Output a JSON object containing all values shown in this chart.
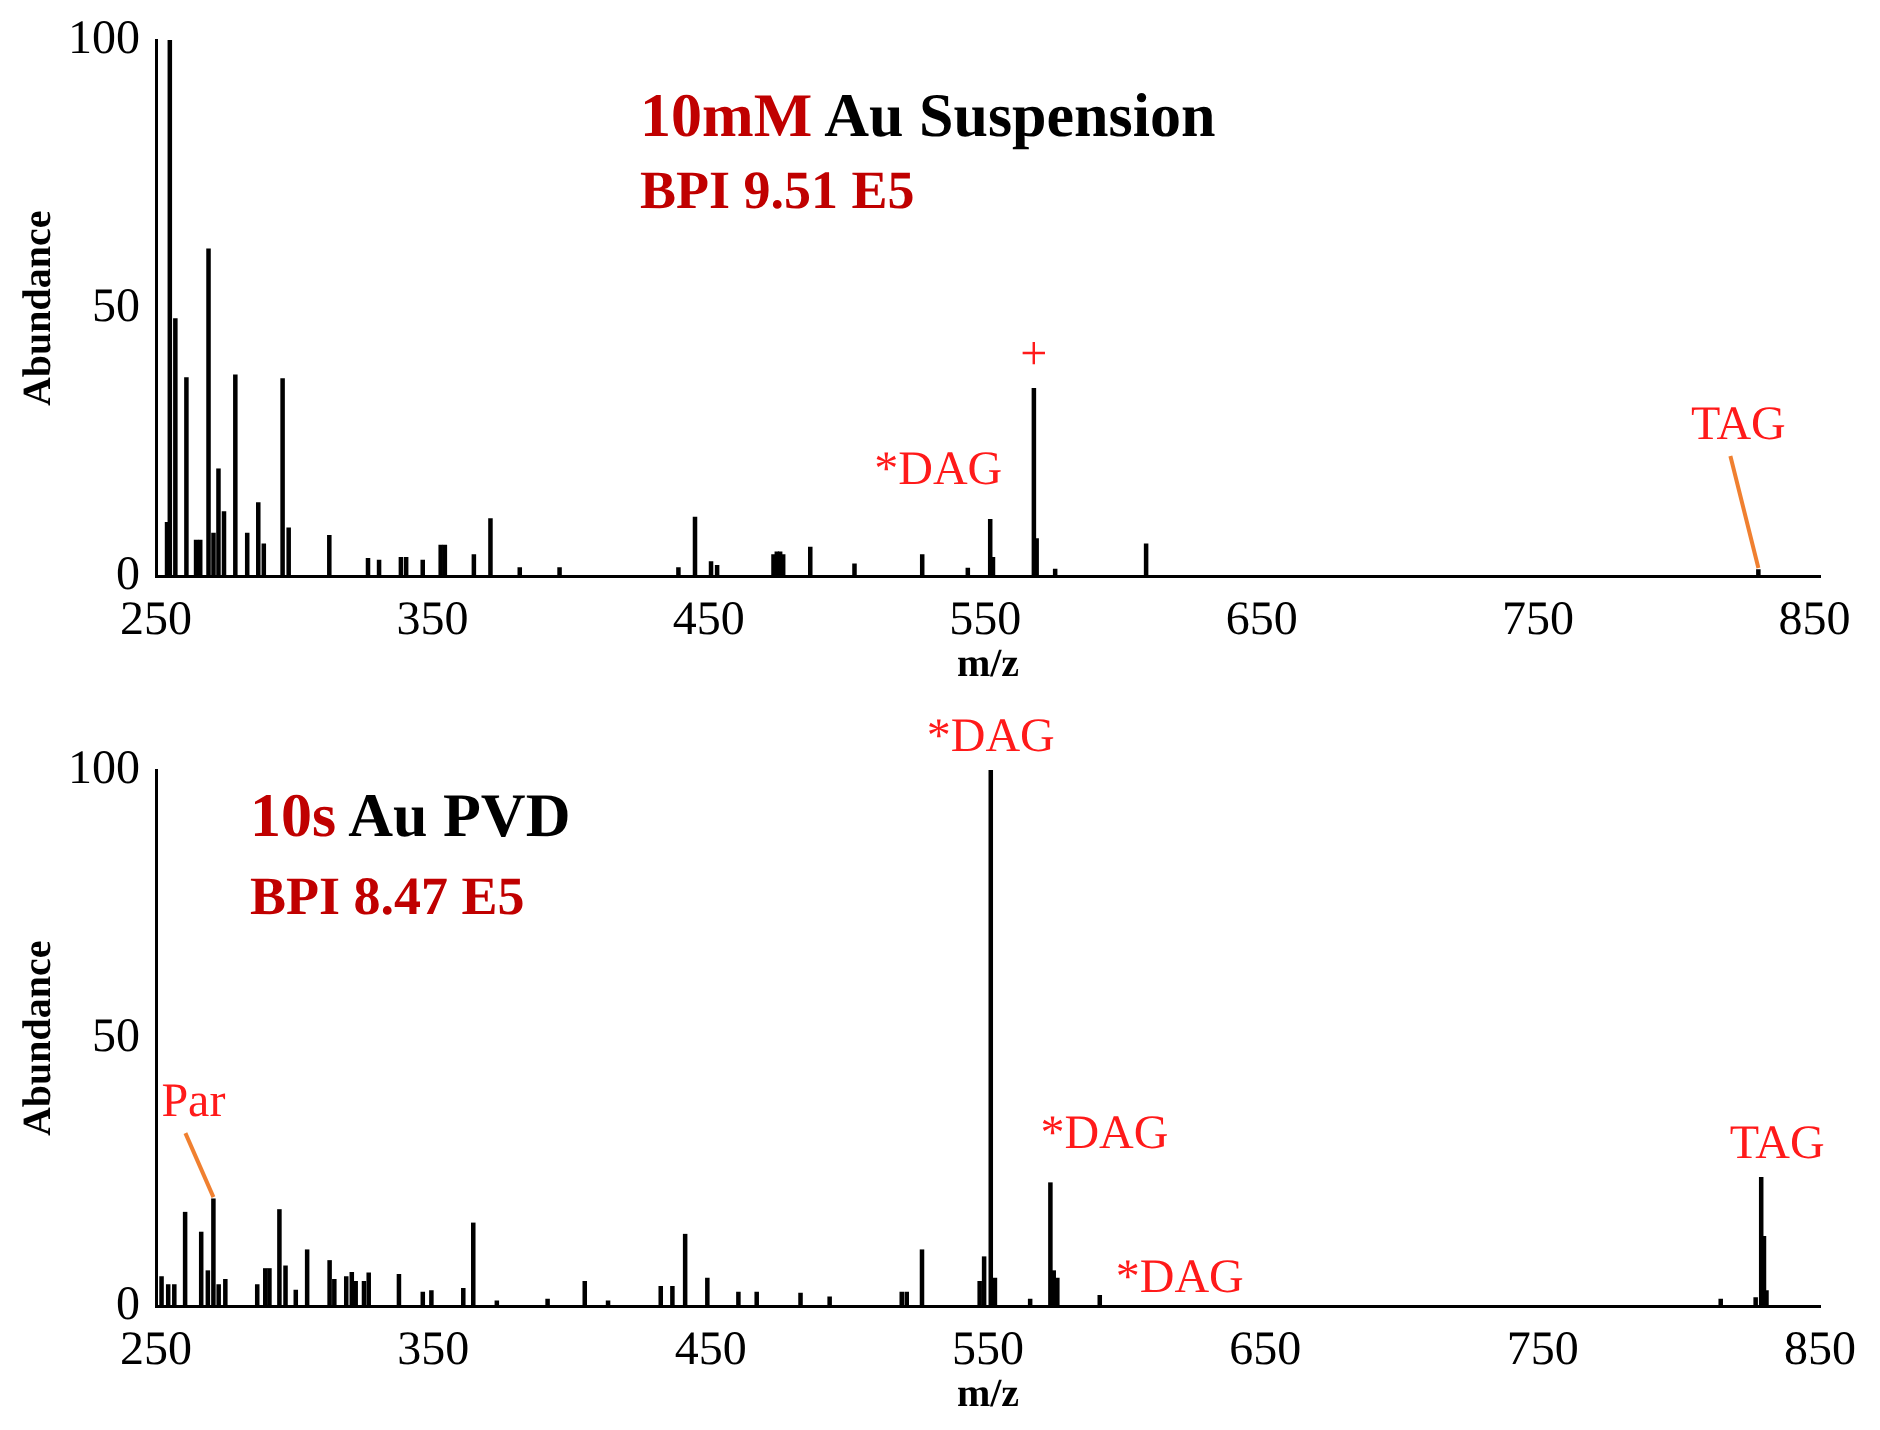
{
  "chart_data": [
    {
      "type": "bar",
      "title": "10mM Au Suspension",
      "subtitle": "BPI 9.51 E5",
      "xlabel": "m/z",
      "ylabel": "Abundance",
      "xlim": [
        250,
        852
      ],
      "xticks": [
        250,
        350,
        450,
        550,
        650,
        750,
        850
      ],
      "ylim": [
        0,
        100
      ],
      "yticks": [
        0,
        50,
        100
      ],
      "color": "#000000",
      "x": [
        254,
        255,
        257,
        261,
        264.5,
        266,
        269,
        270.8,
        272.6,
        274.6,
        278.7,
        283,
        287,
        289,
        295.8,
        298,
        312.7,
        326.7,
        330.7,
        338.6,
        340.5,
        346.5,
        353,
        354.5,
        365,
        371,
        381.6,
        396,
        439,
        445,
        450.8,
        453,
        473.4,
        474.6,
        475.8,
        476.9,
        486.7,
        502.7,
        527.2,
        543.7,
        551.8,
        552.8,
        567.6,
        568.6,
        575.3,
        608.2,
        829.7
      ],
      "values": [
        10,
        100,
        48,
        37,
        6.7,
        6.7,
        61,
        8,
        20,
        12,
        37.5,
        8,
        13.7,
        6,
        36.8,
        9,
        7.6,
        3.3,
        3,
        3.5,
        3.5,
        3,
        5.8,
        5.8,
        4,
        10.7,
        1.6,
        1.6,
        1.6,
        11,
        2.7,
        2,
        4,
        4.5,
        4.5,
        4,
        5.4,
        2.3,
        4,
        1.5,
        10.6,
        3.5,
        35,
        7,
        1.3,
        6,
        1.2
      ],
      "annotations": [
        {
          "text": "*DAG",
          "x": 551.8,
          "y": 10.6
        },
        {
          "text": "+",
          "x": 567.6,
          "y": 35
        },
        {
          "text": "TAG",
          "x": 829.7,
          "y": 1.2
        }
      ]
    },
    {
      "type": "bar",
      "title": "10s Au PVD",
      "subtitle": "BPI 8.47 E5",
      "xlabel": "m/z",
      "ylabel": "Abundance",
      "xlim": [
        250,
        850
      ],
      "xticks": [
        250,
        350,
        450,
        550,
        650,
        750,
        850
      ],
      "ylim": [
        0,
        100
      ],
      "yticks": [
        0,
        50,
        100
      ],
      "color": "#000000",
      "x": [
        252,
        254.4,
        256.6,
        260.5,
        266.3,
        268.7,
        270.7,
        272.6,
        275,
        286.5,
        289.4,
        290.9,
        294.5,
        296.7,
        300.4,
        304.5,
        312.6,
        314.3,
        318.6,
        320.6,
        322,
        325,
        326.7,
        337.6,
        346.2,
        349.3,
        360.8,
        364.4,
        372.9,
        391.2,
        404.6,
        413,
        432,
        436.2,
        440.8,
        448.8,
        460,
        466.6,
        482.4,
        492.9,
        518.9,
        520.7,
        526.2,
        547,
        548.6,
        551,
        552.5,
        565.2,
        572.5,
        573.7,
        575,
        590.3,
        814.2,
        826.8,
        828.8,
        829.8,
        830.7
      ],
      "values": [
        5.5,
        4,
        4,
        17.5,
        13.8,
        6.6,
        20,
        4,
        5,
        4,
        7,
        7,
        18,
        7.5,
        3,
        10.5,
        8.5,
        5,
        5.5,
        6.3,
        4.6,
        4.6,
        6.2,
        5.9,
        2.6,
        2.9,
        3.3,
        15.5,
        1,
        1.3,
        4.6,
        1,
        3.7,
        3.7,
        13.4,
        5.2,
        2.6,
        2.6,
        2.4,
        1.7,
        2.6,
        2.6,
        10.5,
        4.6,
        9.2,
        100,
        5.2,
        1.3,
        23,
        6.6,
        5.2,
        2,
        1.3,
        1.6,
        24,
        13,
        2.9
      ],
      "annotations": [
        {
          "text": "Par",
          "x": 270.7,
          "y": 20
        },
        {
          "text": "*DAG",
          "x": 551,
          "y": 100
        },
        {
          "text": "*DAG",
          "x": 572.5,
          "y": 23
        },
        {
          "text": "*DAG",
          "x": 590.3,
          "y": 2
        },
        {
          "text": "TAG",
          "x": 828.8,
          "y": 24
        }
      ]
    }
  ]
}
